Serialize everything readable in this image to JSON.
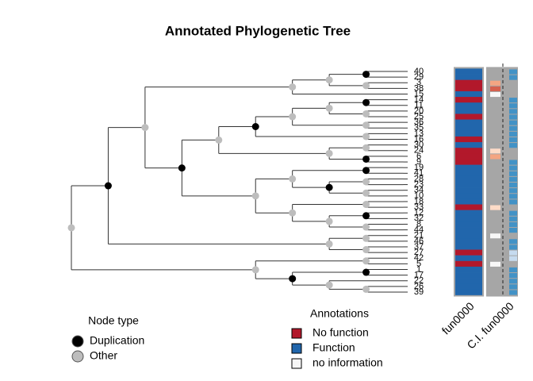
{
  "chart_data": {
    "type": "tree",
    "title": "Annotated Phylogenetic Tree",
    "tree": {
      "node_type": "Other",
      "children": [
        {
          "node_type": "Duplication",
          "children": [
            {
              "node_type": "Other",
              "children": [
                {
                  "node_type": "Other",
                  "children": [
                    {
                      "node_type": "Other",
                      "children": [
                        {
                          "node_type": "Duplication",
                          "children": [
                            {
                              "label": "40"
                            },
                            {
                              "label": "29"
                            }
                          ]
                        },
                        {
                          "node_type": "Other",
                          "children": [
                            {
                              "label": "3"
                            },
                            {
                              "label": "38"
                            }
                          ]
                        }
                      ]
                    },
                    {
                      "label": "15"
                    }
                  ]
                },
                {
                  "node_type": "Duplication",
                  "children": [
                    {
                      "node_type": "Other",
                      "children": [
                        {
                          "node_type": "Duplication",
                          "children": [
                            {
                              "node_type": "Other",
                              "children": [
                                {
                                  "node_type": "Other",
                                  "children": [
                                    {
                                      "node_type": "Duplication",
                                      "children": [
                                        {
                                          "label": "14"
                                        },
                                        {
                                          "label": "11"
                                        }
                                      ]
                                    },
                                    {
                                      "node_type": "Other",
                                      "children": [
                                        {
                                          "label": "20"
                                        },
                                        {
                                          "label": "25"
                                        }
                                      ]
                                    }
                                  ]
                                },
                                {
                                  "node_type": "Other",
                                  "children": [
                                    {
                                      "label": "36"
                                    },
                                    {
                                      "label": "35"
                                    }
                                  ]
                                }
                              ]
                            },
                            {
                              "node_type": "Other",
                              "children": [
                                {
                                  "label": "13"
                                },
                                {
                                  "label": "16"
                                }
                              ]
                            }
                          ]
                        },
                        {
                          "node_type": "Other",
                          "children": [
                            {
                              "node_type": "Other",
                              "children": [
                                {
                                  "label": "30"
                                },
                                {
                                  "label": "24"
                                }
                              ]
                            },
                            {
                              "node_type": "Duplication",
                              "children": [
                                {
                                  "label": "6"
                                },
                                {
                                  "label": "9"
                                }
                              ]
                            }
                          ]
                        }
                      ]
                    },
                    {
                      "node_type": "Other",
                      "children": [
                        {
                          "node_type": "Other",
                          "children": [
                            {
                              "node_type": "Duplication",
                              "children": [
                                {
                                  "label": "19"
                                },
                                {
                                  "label": "41"
                                }
                              ]
                            },
                            {
                              "node_type": "Duplication",
                              "children": [
                                {
                                  "node_type": "Other",
                                  "children": [
                                    {
                                      "label": "28"
                                    },
                                    {
                                      "label": "23"
                                    }
                                  ]
                                },
                                {
                                  "node_type": "Other",
                                  "children": [
                                    {
                                      "label": "34"
                                    },
                                    {
                                      "label": "10"
                                    }
                                  ]
                                }
                              ]
                            }
                          ]
                        },
                        {
                          "node_type": "Other",
                          "children": [
                            {
                              "node_type": "Other",
                              "children": [
                                {
                                  "label": "18"
                                },
                                {
                                  "label": "33"
                                }
                              ]
                            },
                            {
                              "node_type": "Other",
                              "children": [
                                {
                                  "node_type": "Duplication",
                                  "children": [
                                    {
                                      "label": "12"
                                    },
                                    {
                                      "label": "32"
                                    }
                                  ]
                                },
                                {
                                  "node_type": "Other",
                                  "children": [
                                    {
                                      "label": "8"
                                    },
                                    {
                                      "label": "44"
                                    }
                                  ]
                                }
                              ]
                            }
                          ]
                        }
                      ]
                    }
                  ]
                }
              ]
            },
            {
              "node_type": "Other",
              "children": [
                {
                  "node_type": "Other",
                  "children": [
                    {
                      "label": "21"
                    },
                    {
                      "label": "46"
                    }
                  ]
                },
                {
                  "node_type": "Other",
                  "children": [
                    {
                      "label": "37"
                    },
                    {
                      "label": "27"
                    }
                  ]
                }
              ]
            }
          ]
        },
        {
          "node_type": "Other",
          "children": [
            {
              "node_type": "Other",
              "children": [
                {
                  "label": "42"
                },
                {
                  "label": "5"
                }
              ]
            },
            {
              "node_type": "Duplication",
              "children": [
                {
                  "node_type": "Duplication",
                  "children": [
                    {
                      "label": "1"
                    },
                    {
                      "label": "17"
                    }
                  ]
                },
                {
                  "node_type": "Other",
                  "children": [
                    {
                      "label": "22"
                    },
                    {
                      "node_type": "Other",
                      "children": [
                        {
                          "label": "26"
                        },
                        {
                          "label": "39"
                        }
                      ]
                    }
                  ]
                }
              ]
            }
          ]
        }
      ]
    },
    "node_legend": {
      "title": "Node type",
      "items": [
        {
          "name": "Duplication",
          "color": "#000000"
        },
        {
          "name": "Other",
          "color": "#bdbdbd"
        }
      ]
    },
    "annotation_legend": {
      "title": "Annotations",
      "items": [
        {
          "name": "No function",
          "color": "#b2182b"
        },
        {
          "name": "Function",
          "color": "#2166ac"
        },
        {
          "name": "no information",
          "color": "#f7f7f7"
        }
      ]
    },
    "columns": [
      "fun0000",
      "C.I. fun0000"
    ],
    "fun0000": [
      "Function",
      "Function",
      "No function",
      "No function",
      "Function",
      "No function",
      "Function",
      "Function",
      "No function",
      "Function",
      "Function",
      "Function",
      "No function",
      "Function",
      "No function",
      "No function",
      "No function",
      "Function",
      "Function",
      "Function",
      "Function",
      "Function",
      "Function",
      "Function",
      "No function",
      "Function",
      "Function",
      "Function",
      "Function",
      "Function",
      "Function",
      "Function",
      "No function",
      "Function",
      "No function",
      "Function",
      "Function",
      "Function",
      "Function",
      "Function"
    ],
    "ci_colors": [
      "#4292c6",
      "#4292c6",
      "#f4a582",
      "#d6604d",
      "#f7f7f7",
      "#4292c6",
      "#4292c6",
      "#4292c6",
      "#4292c6",
      "#4292c6",
      "#4292c6",
      "#4292c6",
      "#4292c6",
      "#4292c6",
      "#fddbc7",
      "#f4a582",
      "#4292c6",
      "#4292c6",
      "#4292c6",
      "#4292c6",
      "#4292c6",
      "#4292c6",
      "#4292c6",
      "#4292c6",
      "#fddbc7",
      "#4292c6",
      "#4292c6",
      "#4292c6",
      "#4292c6",
      "#f7f7f7",
      "#4292c6",
      "#4292c6",
      "#c6dbef",
      "#c6dbef",
      "#f7f7f7",
      "#4292c6",
      "#4292c6",
      "#4292c6",
      "#4292c6",
      "#4292c6"
    ]
  }
}
